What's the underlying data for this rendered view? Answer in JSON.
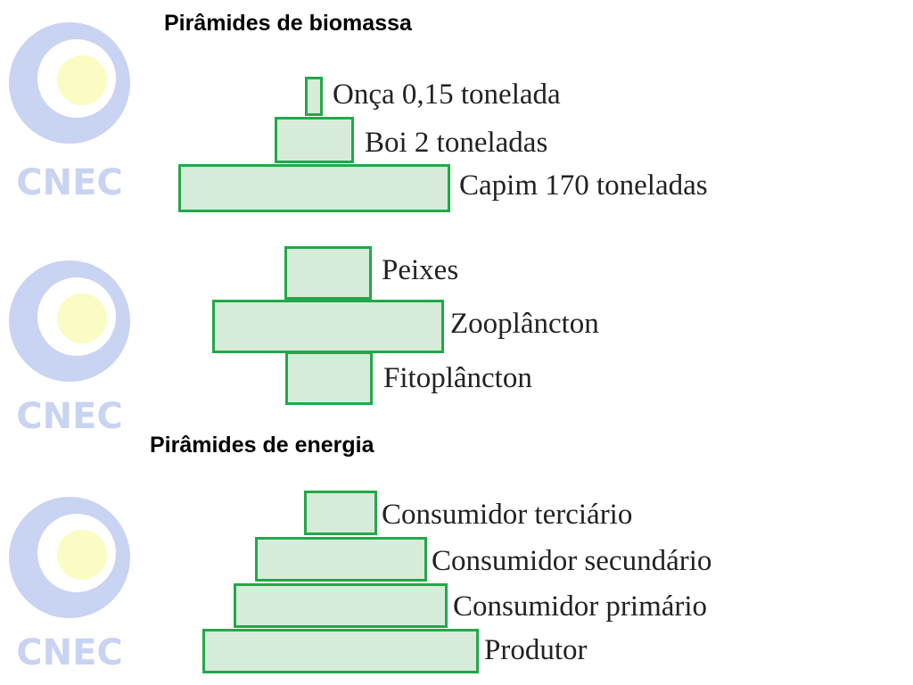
{
  "watermark": {
    "text": "CNEC",
    "colors": {
      "ring": "#c9d3f2",
      "core": "#fbfbc4",
      "text": "#c9d3f2"
    }
  },
  "biomass": {
    "title": "Pirâmides de biomassa",
    "pyramid1": {
      "levels": [
        {
          "label": "Onça 0,15 tonelada"
        },
        {
          "label": "Boi 2 toneladas"
        },
        {
          "label": "Capim 170 toneladas"
        }
      ]
    },
    "pyramid2": {
      "levels": [
        {
          "label": "Peixes"
        },
        {
          "label": "Zooplâncton"
        },
        {
          "label": "Fitoplâncton"
        }
      ]
    }
  },
  "energy": {
    "title": "Pirâmides de energia",
    "levels": [
      {
        "label": "Consumidor terciário"
      },
      {
        "label": "Consumidor secundário"
      },
      {
        "label": "Consumidor primário"
      },
      {
        "label": "Produtor"
      }
    ]
  },
  "colors": {
    "bar_fill": "#d6ecd8",
    "bar_border": "#22a84a"
  }
}
